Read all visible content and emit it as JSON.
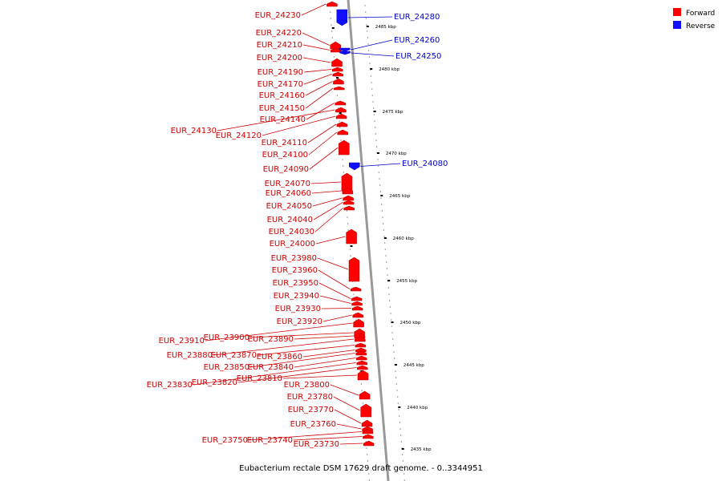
{
  "caption": "Eubacterium rectale DSM 17629 draft genome. - 0..3344951",
  "colors": {
    "forward": "#ff0000",
    "reverse": "#1010ff",
    "line_forward": "#cc0000",
    "line_reverse": "#0000cc",
    "backbone": "#999999"
  },
  "legend": [
    {
      "label": "Forward",
      "color": "#ff0000"
    },
    {
      "label": "Reverse",
      "color": "#1010ff"
    }
  ],
  "ticks": [
    "2485 kbp",
    "2480 kbp",
    "2475 kbp",
    "2470 kbp",
    "2465 kbp",
    "2460 kbp",
    "2455 kbp",
    "2450 kbp",
    "2445 kbp",
    "2440 kbp",
    "2435 kbp"
  ],
  "genes_forward": [
    "EUR_24230",
    "EUR_24220",
    "EUR_24210",
    "EUR_24200",
    "EUR_24190",
    "EUR_24170",
    "EUR_24160",
    "EUR_24150",
    "EUR_24140",
    "EUR_24130",
    "EUR_24120",
    "EUR_24110",
    "EUR_24100",
    "EUR_24090",
    "EUR_24070",
    "EUR_24060",
    "EUR_24050",
    "EUR_24040",
    "EUR_24030",
    "EUR_24000",
    "EUR_23980",
    "EUR_23960",
    "EUR_23950",
    "EUR_23940",
    "EUR_23930",
    "EUR_23920",
    "EUR_23910",
    "EUR_23900",
    "EUR_23890",
    "EUR_23880",
    "EUR_23870",
    "EUR_23860",
    "EUR_23850",
    "EUR_23840",
    "EUR_23830",
    "EUR_23820",
    "EUR_23810",
    "EUR_23800",
    "EUR_23780",
    "EUR_23770",
    "EUR_23760",
    "EUR_23750",
    "EUR_23740",
    "EUR_23730"
  ],
  "genes_reverse": [
    "EUR_24280",
    "EUR_24260",
    "EUR_24250",
    "EUR_24080"
  ]
}
